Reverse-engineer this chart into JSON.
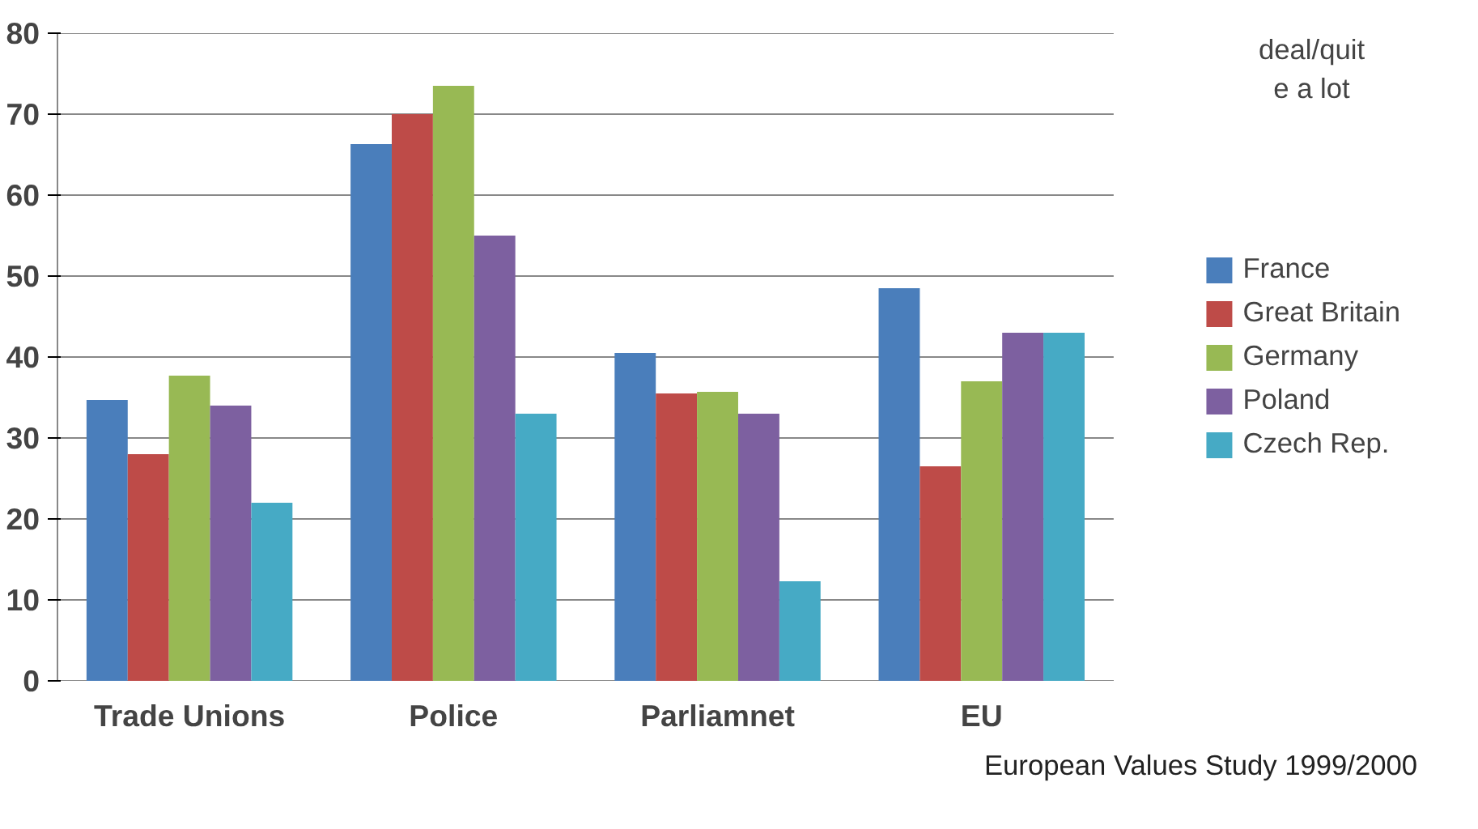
{
  "chart_data": {
    "type": "bar",
    "categories": [
      "Trade Unions",
      "Police",
      "Parliamnet",
      "EU"
    ],
    "series": [
      {
        "name": "France",
        "color": "#4a7ebb",
        "values": [
          34.7,
          66.3,
          40.5,
          48.5
        ]
      },
      {
        "name": "Great Britain",
        "color": "#be4b48",
        "values": [
          28,
          70,
          35.5,
          26.5
        ]
      },
      {
        "name": "Germany",
        "color": "#98b954",
        "values": [
          37.7,
          73.5,
          35.7,
          37
        ]
      },
      {
        "name": "Poland",
        "color": "#7d60a0",
        "values": [
          34,
          55,
          33,
          43
        ]
      },
      {
        "name": "Czech Rep.",
        "color": "#46aac5",
        "values": [
          22,
          33,
          12.3,
          43
        ]
      }
    ],
    "ylim": [
      0,
      80
    ],
    "yticks": [
      0,
      10,
      20,
      30,
      40,
      50,
      60,
      70,
      80
    ],
    "grid": "y",
    "legend": "right",
    "annotations": [
      "deal/quit\ne a lot",
      "European Values Study 1999/2000"
    ]
  }
}
